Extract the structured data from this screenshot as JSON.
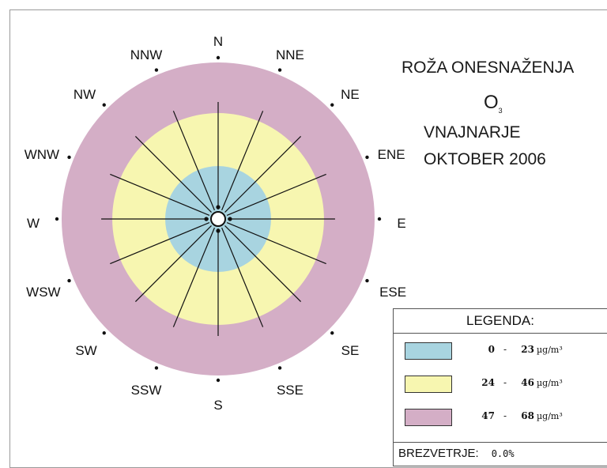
{
  "title": {
    "main": "ROŽA ONESNAŽENJA",
    "pollutant": "O",
    "pollutant_sub": "3",
    "station": "VNAJNARJE",
    "period": "OKTOBER 2006"
  },
  "legend": {
    "title": "LEGENDA:",
    "unit": "µg/m³",
    "classes": [
      {
        "min": "0",
        "max": "23",
        "color": "#a8d4e0"
      },
      {
        "min": "24",
        "max": "46",
        "color": "#f7f6b0"
      },
      {
        "min": "47",
        "max": "68",
        "color": "#d4aec6"
      }
    ],
    "calm_label": "BREZVETRJE:",
    "calm_value": "0.0%"
  },
  "chart_data": {
    "type": "pollution-rose",
    "directions": [
      "N",
      "NNE",
      "NE",
      "ENE",
      "E",
      "ESE",
      "SE",
      "SSE",
      "S",
      "SSW",
      "SW",
      "WSW",
      "W",
      "WNW",
      "NW",
      "NNW"
    ],
    "ring_outer_values": [
      23,
      46,
      68
    ],
    "ring_colors": [
      "#a8d4e0",
      "#f7f6b0",
      "#d4aec6"
    ],
    "scale_max": 68,
    "calm_percent": 0.0
  }
}
